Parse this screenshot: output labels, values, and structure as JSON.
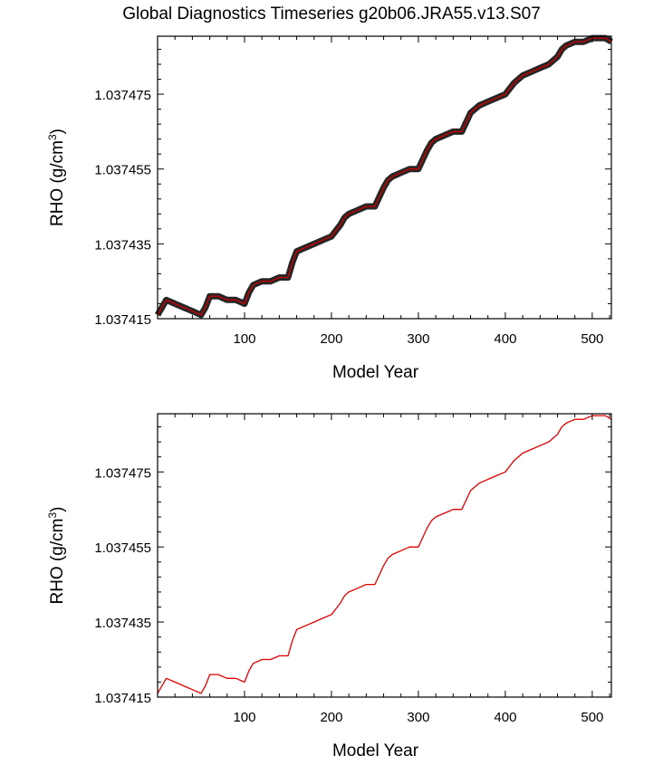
{
  "title": "Global Diagnostics Timeseries g20b06.JRA55.v13.S07",
  "chart_data": [
    {
      "type": "line",
      "xlabel": "Model Year",
      "ylabel": "RHO (g/cm",
      "ylabel_sup": "3",
      "ylabel_close": ")",
      "xlim": [
        0,
        522
      ],
      "ylim": [
        1.037415,
        1.0374905
      ],
      "xticks": [
        100,
        200,
        300,
        400,
        500
      ],
      "xtick_labels": [
        "100",
        "200",
        "300",
        "400",
        "500"
      ],
      "yticks": [
        1.037415,
        1.037435,
        1.037455,
        1.037475
      ],
      "ytick_labels": [
        "1.037415",
        "1.037435",
        "1.037455",
        "1.037475"
      ],
      "series": [
        {
          "color": "#000000",
          "style": "monthly-band",
          "x": [
            0,
            5,
            10,
            20,
            30,
            40,
            50,
            55,
            60,
            70,
            80,
            90,
            100,
            105,
            110,
            120,
            130,
            140,
            150,
            155,
            160,
            170,
            180,
            190,
            200,
            210,
            215,
            220,
            230,
            240,
            250,
            260,
            265,
            270,
            280,
            290,
            300,
            310,
            315,
            320,
            330,
            340,
            350,
            360,
            365,
            370,
            380,
            390,
            400,
            410,
            415,
            420,
            430,
            440,
            450,
            460,
            465,
            470,
            480,
            490,
            500,
            510,
            515,
            522
          ],
          "y": [
            1.037416,
            1.037418,
            1.03742,
            1.037419,
            1.037418,
            1.037417,
            1.037416,
            1.037418,
            1.037421,
            1.037421,
            1.03742,
            1.03742,
            1.037419,
            1.037422,
            1.037424,
            1.037425,
            1.037425,
            1.037426,
            1.037426,
            1.03743,
            1.037433,
            1.037434,
            1.037435,
            1.037436,
            1.037437,
            1.03744,
            1.037442,
            1.037443,
            1.037444,
            1.037445,
            1.037445,
            1.03745,
            1.037452,
            1.037453,
            1.037454,
            1.037455,
            1.037455,
            1.03746,
            1.037462,
            1.037463,
            1.037464,
            1.037465,
            1.037465,
            1.03747,
            1.037471,
            1.037472,
            1.037473,
            1.037474,
            1.037475,
            1.037478,
            1.037479,
            1.03748,
            1.037481,
            1.037482,
            1.037483,
            1.037485,
            1.037487,
            1.037488,
            1.037489,
            1.037489,
            1.03749,
            1.03749,
            1.03749,
            1.037489
          ]
        },
        {
          "color": "#d00000",
          "style": "annual",
          "x": [
            0,
            5,
            10,
            20,
            30,
            40,
            50,
            55,
            60,
            70,
            80,
            90,
            100,
            105,
            110,
            120,
            130,
            140,
            150,
            155,
            160,
            170,
            180,
            190,
            200,
            210,
            215,
            220,
            230,
            240,
            250,
            260,
            265,
            270,
            280,
            290,
            300,
            310,
            315,
            320,
            330,
            340,
            350,
            360,
            365,
            370,
            380,
            390,
            400,
            410,
            415,
            420,
            430,
            440,
            450,
            460,
            465,
            470,
            480,
            490,
            500,
            510,
            515,
            522
          ],
          "y": [
            1.037416,
            1.037418,
            1.03742,
            1.037419,
            1.037418,
            1.037417,
            1.037416,
            1.037418,
            1.037421,
            1.037421,
            1.03742,
            1.03742,
            1.037419,
            1.037422,
            1.037424,
            1.037425,
            1.037425,
            1.037426,
            1.037426,
            1.03743,
            1.037433,
            1.037434,
            1.037435,
            1.037436,
            1.037437,
            1.03744,
            1.037442,
            1.037443,
            1.037444,
            1.037445,
            1.037445,
            1.03745,
            1.037452,
            1.037453,
            1.037454,
            1.037455,
            1.037455,
            1.03746,
            1.037462,
            1.037463,
            1.037464,
            1.037465,
            1.037465,
            1.03747,
            1.037471,
            1.037472,
            1.037473,
            1.037474,
            1.037475,
            1.037478,
            1.037479,
            1.03748,
            1.037481,
            1.037482,
            1.037483,
            1.037485,
            1.037487,
            1.037488,
            1.037489,
            1.037489,
            1.03749,
            1.03749,
            1.03749,
            1.037489
          ]
        }
      ]
    },
    {
      "type": "line",
      "xlabel": "Model Year",
      "ylabel": "RHO (g/cm",
      "ylabel_sup": "3",
      "ylabel_close": ")",
      "xlim": [
        0,
        522
      ],
      "ylim": [
        1.037415,
        1.0374905
      ],
      "xticks": [
        100,
        200,
        300,
        400,
        500
      ],
      "xtick_labels": [
        "100",
        "200",
        "300",
        "400",
        "500"
      ],
      "yticks": [
        1.037415,
        1.037435,
        1.037455,
        1.037475
      ],
      "ytick_labels": [
        "1.037415",
        "1.037435",
        "1.037455",
        "1.037475"
      ],
      "series": [
        {
          "color": "#e00000",
          "style": "annual",
          "x": [
            0,
            5,
            10,
            20,
            30,
            40,
            50,
            55,
            60,
            70,
            80,
            90,
            100,
            105,
            110,
            120,
            130,
            140,
            150,
            155,
            160,
            170,
            180,
            190,
            200,
            210,
            215,
            220,
            230,
            240,
            250,
            260,
            265,
            270,
            280,
            290,
            300,
            310,
            315,
            320,
            330,
            340,
            350,
            360,
            365,
            370,
            380,
            390,
            400,
            410,
            415,
            420,
            430,
            440,
            450,
            460,
            465,
            470,
            480,
            490,
            500,
            510,
            515,
            522
          ],
          "y": [
            1.037416,
            1.037418,
            1.03742,
            1.037419,
            1.037418,
            1.037417,
            1.037416,
            1.037418,
            1.037421,
            1.037421,
            1.03742,
            1.03742,
            1.037419,
            1.037422,
            1.037424,
            1.037425,
            1.037425,
            1.037426,
            1.037426,
            1.03743,
            1.037433,
            1.037434,
            1.037435,
            1.037436,
            1.037437,
            1.03744,
            1.037442,
            1.037443,
            1.037444,
            1.037445,
            1.037445,
            1.03745,
            1.037452,
            1.037453,
            1.037454,
            1.037455,
            1.037455,
            1.03746,
            1.037462,
            1.037463,
            1.037464,
            1.037465,
            1.037465,
            1.03747,
            1.037471,
            1.037472,
            1.037473,
            1.037474,
            1.037475,
            1.037478,
            1.037479,
            1.03748,
            1.037481,
            1.037482,
            1.037483,
            1.037485,
            1.037487,
            1.037488,
            1.037489,
            1.037489,
            1.03749,
            1.03749,
            1.03749,
            1.037489
          ]
        }
      ]
    }
  ]
}
